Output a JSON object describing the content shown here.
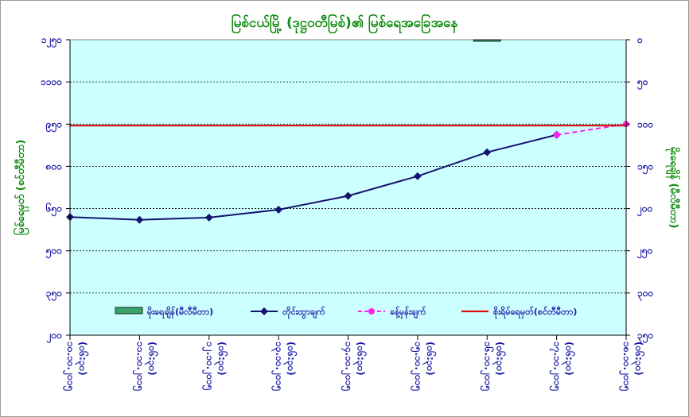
{
  "chart_data": {
    "type": "line",
    "title": "မြစ်ငယ်မြို့ (ဒုဋ္ဌဝတီမြစ်)၏ မြစ်ရေအခြေအနေ",
    "ylabel_left": "မြစ်ရေမှတ် (စင်တီမီတာ)",
    "ylabel_right": "မိုးရေချိန် (မီလီမီတာ)",
    "y_left_ticks": [
      "၁၂၅၀",
      "၁၁၀၀",
      "၉၅၀",
      "၈၀၀",
      "၆၅၀",
      "၅၀၀",
      "၃၅၀",
      "၂၀၀"
    ],
    "y_left_lim": [
      200,
      1250
    ],
    "y_right_ticks": [
      "၀",
      "၅၀",
      "၁၀၀",
      "၁၅၀",
      "၂၀၀",
      "၂၅၀",
      "၃၀၀",
      "၃၅၀"
    ],
    "y_right_lim": [
      0,
      350
    ],
    "x_dates": [
      "၁၀.၁၀.၂၀၁၅",
      "၁၁.၁၀.၂၀၁၅",
      "၁၂.၁၀.၂၀၁၅",
      "၁၃.၁၀.၂၀၁၅",
      "၁၄.၁၀.၂၀၁၅",
      "၁၅.၁၀.၂၀၁၅",
      "၁၆.၁၀.၂၀၁၅",
      "၁၇.၁၀.၂၀၁၅",
      "၁၈.၁၀.၂၀၁၅"
    ],
    "x_times": [
      "(၀၆:၃၀)",
      "(၀၆:၃၀)",
      "(၀၆:၃၀)",
      "(၀၆:၃၀)",
      "(၀၆:၃၀)",
      "(၀၆:၃၀)",
      "(၀၆:၃၀)",
      "(၀၆:၃၀)",
      "(၀၆:၃၀)"
    ],
    "series": [
      {
        "name": "မိုးရေချိန်(မီလီမီတာ)",
        "type": "bar",
        "axis": "right",
        "color": "#3aa36a",
        "values": [
          null,
          null,
          null,
          null,
          null,
          null,
          1.5,
          null,
          null
        ]
      },
      {
        "name": "တိုင်းထွာချက်",
        "type": "line",
        "axis": "left",
        "color": "#14146e",
        "values": [
          620,
          610,
          618,
          646,
          695,
          765,
          850,
          912,
          null
        ]
      },
      {
        "name": "ခန့်မှန်းချက်",
        "type": "line",
        "axis": "left",
        "style": "dashed",
        "color": "#ff22ee",
        "values": [
          null,
          null,
          null,
          null,
          null,
          null,
          null,
          912,
          950
        ]
      },
      {
        "name": "စိုးရိမ်ရေမှတ်(စင်တီမီတာ)",
        "type": "hline",
        "axis": "left",
        "color": "#e01010",
        "value": 945
      }
    ],
    "plot_background": "#ccffff",
    "grid": true,
    "legend_position": "bottom"
  }
}
